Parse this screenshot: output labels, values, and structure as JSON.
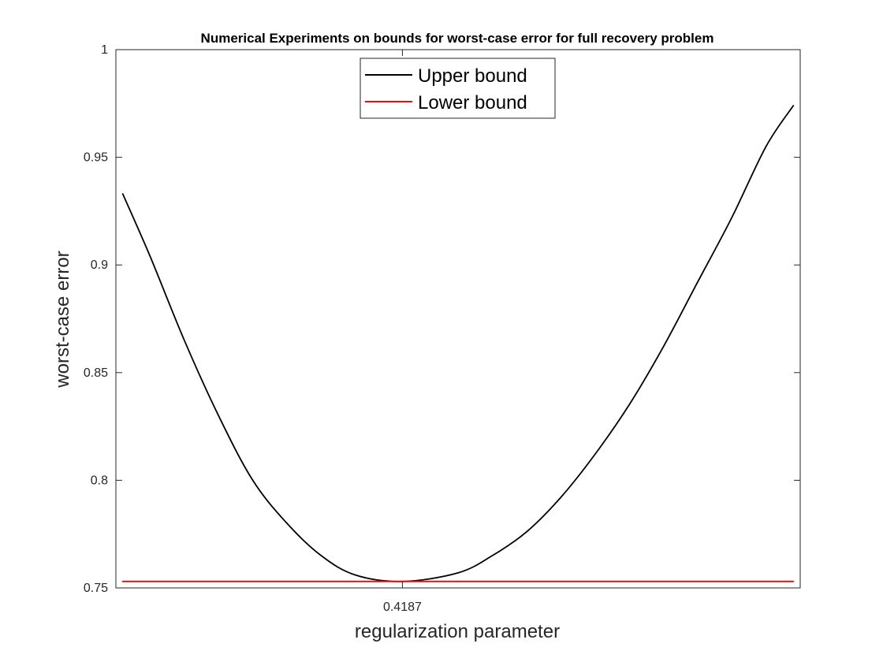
{
  "chart_data": {
    "type": "line",
    "title": "Numerical Experiments on bounds for worst-case error for full recovery problem",
    "xlabel": "regularization parameter",
    "ylabel": "worst-case error",
    "xlim": [
      0.0,
      1.0
    ],
    "ylim": [
      0.75,
      1.0
    ],
    "x_ticks": [
      0.4187
    ],
    "x_tick_labels": [
      "0.4187"
    ],
    "y_ticks": [
      0.75,
      0.8,
      0.85,
      0.9,
      0.95,
      1.0
    ],
    "y_tick_labels": [
      "0.75",
      "0.8",
      "0.85",
      "0.9",
      "0.95",
      "1"
    ],
    "grid": false,
    "legend_position": "top-center",
    "series": [
      {
        "name": "Upper bound",
        "color": "#000000",
        "x": [
          0.01,
          0.05,
          0.1,
          0.15,
          0.2,
          0.25,
          0.3,
          0.35,
          0.4187,
          0.5,
          0.55,
          0.6,
          0.65,
          0.7,
          0.75,
          0.8,
          0.85,
          0.9,
          0.95,
          0.99
        ],
        "y": [
          0.933,
          0.904,
          0.865,
          0.83,
          0.8,
          0.78,
          0.765,
          0.756,
          0.753,
          0.757,
          0.765,
          0.776,
          0.792,
          0.812,
          0.835,
          0.862,
          0.892,
          0.922,
          0.955,
          0.974
        ]
      },
      {
        "name": "Lower bound",
        "color": "#ff0000",
        "x": [
          0.01,
          0.99
        ],
        "y": [
          0.753,
          0.753
        ]
      }
    ]
  }
}
